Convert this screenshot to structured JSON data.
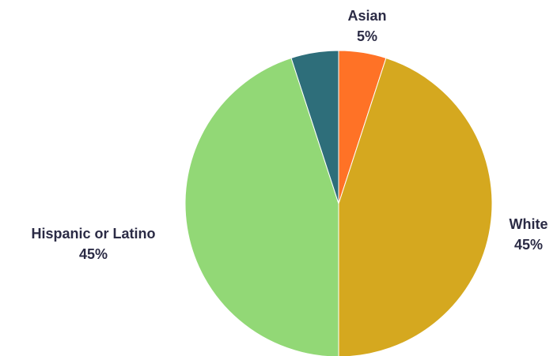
{
  "chart_data": {
    "type": "pie",
    "title": "",
    "start_angle_deg": 0,
    "direction": "clockwise",
    "slices": [
      {
        "label": "Asian",
        "value": 5,
        "value_label": "5%",
        "color": "#ff7226"
      },
      {
        "label": "White",
        "value": 45,
        "value_label": "45%",
        "color": "#d5a81f"
      },
      {
        "label": "Hispanic or Latino",
        "value": 45,
        "value_label": "45%",
        "color": "#92d876"
      },
      {
        "label": "",
        "value": 5,
        "value_label": "",
        "color": "#2e6e7a"
      }
    ],
    "legend": "none"
  }
}
